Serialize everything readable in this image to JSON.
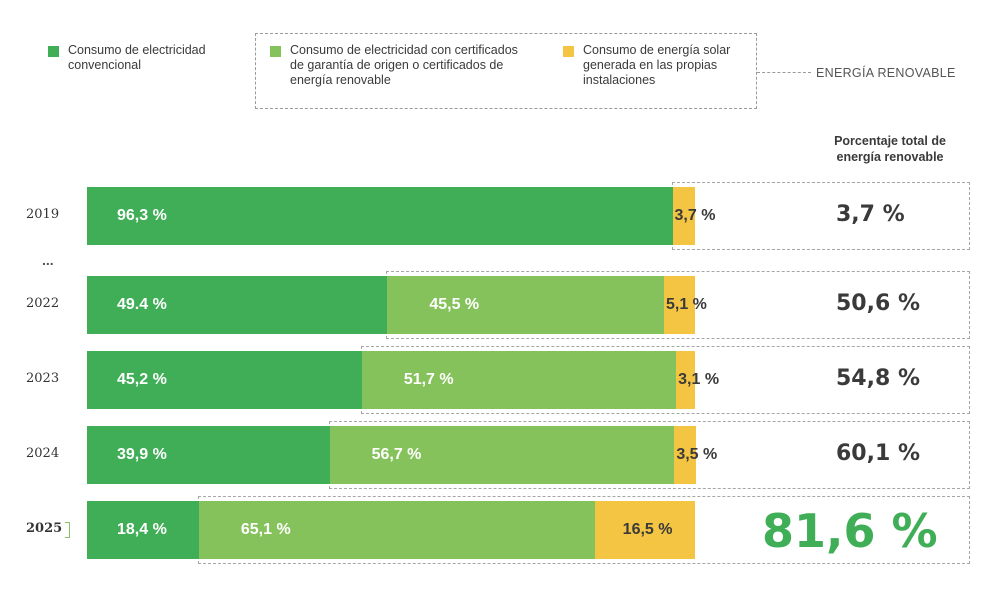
{
  "colors": {
    "conventional": "#3fae57",
    "certified": "#86c25b",
    "solar": "#f4c542",
    "highlight_total": "#3fae57",
    "text": "#3a3a3a"
  },
  "legend": {
    "conventional": "Consumo de electricidad convencional",
    "certified": "Consumo de electricidad con certificados de garantía de origen o certificados de energía renovable",
    "solar": "Consumo de energía solar generada en las propias instalaciones",
    "renewable_group_title": "ENERGÍA RENOVABLE"
  },
  "total_column_title": "Porcentaje total de energía renovable",
  "ellipsis": "...",
  "chart_data": {
    "type": "bar",
    "orientation": "horizontal",
    "stacked": true,
    "categories": [
      "2019",
      "2022",
      "2023",
      "2024",
      "2025"
    ],
    "series": [
      {
        "name": "Consumo de electricidad convencional",
        "values": [
          96.3,
          49.4,
          45.2,
          39.9,
          18.4
        ],
        "labels": [
          "96,3 %",
          "49.4 %",
          "45,2 %",
          "39,9 %",
          "18,4 %"
        ]
      },
      {
        "name": "Consumo de electricidad con certificados de garantía de origen o certificados de energía renovable",
        "values": [
          0,
          45.5,
          51.7,
          56.7,
          65.1
        ],
        "labels": [
          "",
          "45,5 %",
          "51,7 %",
          "56,7 %",
          "65,1 %"
        ]
      },
      {
        "name": "Consumo de energía solar generada en las propias instalaciones",
        "values": [
          3.7,
          5.1,
          3.1,
          3.5,
          16.5
        ],
        "labels": [
          "3,7 %",
          "5,1 %",
          "3,1 %",
          "3,5 %",
          "16,5 %"
        ]
      }
    ],
    "totals": [
      {
        "value": 3.7,
        "label": "3,7 %"
      },
      {
        "value": 50.6,
        "label": "50,6 %"
      },
      {
        "value": 54.8,
        "label": "54,8 %"
      },
      {
        "value": 60.1,
        "label": "60,1 %"
      },
      {
        "value": 81.6,
        "label": "81,6 %"
      }
    ],
    "highlight_category": "2025",
    "xlim": [
      0,
      100
    ]
  }
}
